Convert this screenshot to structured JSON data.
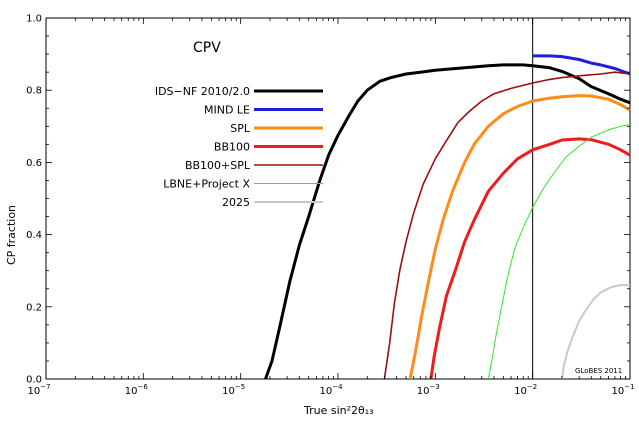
{
  "chart_data": {
    "type": "line",
    "inset_title": "CPV",
    "xlabel": "True sin²2θ₁₃",
    "ylabel": "CP fraction",
    "x_scale": "log",
    "xlim": [
      1e-07,
      0.1
    ],
    "ylim": [
      0,
      1.0
    ],
    "x_ticks": [
      {
        "v": 1e-07,
        "base": "10",
        "exp": "−7"
      },
      {
        "v": 1e-06,
        "base": "10",
        "exp": "−6"
      },
      {
        "v": 1e-05,
        "base": "10",
        "exp": "−5"
      },
      {
        "v": 0.0001,
        "base": "10",
        "exp": "−4"
      },
      {
        "v": 0.001,
        "base": "10",
        "exp": "−3"
      },
      {
        "v": 0.01,
        "base": "10",
        "exp": "−2"
      },
      {
        "v": 0.1,
        "base": "10",
        "exp": "−1"
      }
    ],
    "y_ticks": [
      {
        "v": 0.0,
        "label": "0.0"
      },
      {
        "v": 0.2,
        "label": "0.2"
      },
      {
        "v": 0.4,
        "label": "0.4"
      },
      {
        "v": 0.6,
        "label": "0.6"
      },
      {
        "v": 0.8,
        "label": "0.8"
      },
      {
        "v": 1.0,
        "label": "1.0"
      }
    ],
    "reference_line_x": 0.01,
    "watermark": "GLoBES 2011",
    "grid": false,
    "legend_position": "upper-left",
    "series": [
      {
        "name": "IDS−NF 2010/2.0",
        "color": "#000000",
        "width": 3,
        "points": [
          [
            1.8e-05,
            0
          ],
          [
            2.1e-05,
            0.05
          ],
          [
            2.5e-05,
            0.14
          ],
          [
            3.2e-05,
            0.27
          ],
          [
            4e-05,
            0.37
          ],
          [
            5e-05,
            0.45
          ],
          [
            6.5e-05,
            0.55
          ],
          [
            8e-05,
            0.62
          ],
          [
            0.0001,
            0.675
          ],
          [
            0.00013,
            0.73
          ],
          [
            0.00016,
            0.77
          ],
          [
            0.0002,
            0.8
          ],
          [
            0.00027,
            0.825
          ],
          [
            0.00035,
            0.835
          ],
          [
            0.0005,
            0.845
          ],
          [
            0.0007,
            0.85
          ],
          [
            0.001,
            0.855
          ],
          [
            0.002,
            0.862
          ],
          [
            0.0035,
            0.868
          ],
          [
            0.005,
            0.87
          ],
          [
            0.008,
            0.87
          ],
          [
            0.01,
            0.868
          ],
          [
            0.015,
            0.862
          ],
          [
            0.02,
            0.852
          ],
          [
            0.03,
            0.832
          ],
          [
            0.04,
            0.81
          ],
          [
            0.06,
            0.79
          ],
          [
            0.08,
            0.775
          ],
          [
            0.1,
            0.765
          ]
        ]
      },
      {
        "name": "MIND LE",
        "color": "#1f1fd8",
        "width": 3,
        "points": [
          [
            0.01,
            0.895
          ],
          [
            0.015,
            0.895
          ],
          [
            0.02,
            0.893
          ],
          [
            0.03,
            0.885
          ],
          [
            0.04,
            0.875
          ],
          [
            0.05,
            0.87
          ],
          [
            0.07,
            0.86
          ],
          [
            0.1,
            0.845
          ]
        ]
      },
      {
        "name": "SPL",
        "color": "#ff8c1a",
        "width": 3,
        "points": [
          [
            0.00055,
            0
          ],
          [
            0.00062,
            0.07
          ],
          [
            0.00072,
            0.17
          ],
          [
            0.00085,
            0.27
          ],
          [
            0.001,
            0.36
          ],
          [
            0.0012,
            0.44
          ],
          [
            0.0015,
            0.52
          ],
          [
            0.002,
            0.6
          ],
          [
            0.0025,
            0.65
          ],
          [
            0.0035,
            0.7
          ],
          [
            0.005,
            0.735
          ],
          [
            0.007,
            0.755
          ],
          [
            0.01,
            0.77
          ],
          [
            0.015,
            0.778
          ],
          [
            0.02,
            0.782
          ],
          [
            0.03,
            0.785
          ],
          [
            0.04,
            0.784
          ],
          [
            0.06,
            0.775
          ],
          [
            0.08,
            0.76
          ],
          [
            0.1,
            0.745
          ]
        ]
      },
      {
        "name": "BB100",
        "color": "#ee1c1c",
        "width": 3,
        "points": [
          [
            0.0009,
            0
          ],
          [
            0.00097,
            0.06
          ],
          [
            0.0011,
            0.14
          ],
          [
            0.0013,
            0.23
          ],
          [
            0.0016,
            0.3
          ],
          [
            0.002,
            0.38
          ],
          [
            0.0025,
            0.44
          ],
          [
            0.0035,
            0.52
          ],
          [
            0.005,
            0.57
          ],
          [
            0.007,
            0.61
          ],
          [
            0.01,
            0.635
          ],
          [
            0.015,
            0.65
          ],
          [
            0.02,
            0.662
          ],
          [
            0.03,
            0.665
          ],
          [
            0.04,
            0.663
          ],
          [
            0.06,
            0.65
          ],
          [
            0.08,
            0.635
          ],
          [
            0.1,
            0.62
          ]
        ]
      },
      {
        "name": "BB100+SPL",
        "color": "#9b1010",
        "width": 1.6,
        "points": [
          [
            0.0003,
            0
          ],
          [
            0.00034,
            0.1
          ],
          [
            0.00038,
            0.21
          ],
          [
            0.00043,
            0.3
          ],
          [
            0.0005,
            0.38
          ],
          [
            0.0006,
            0.46
          ],
          [
            0.00075,
            0.54
          ],
          [
            0.001,
            0.61
          ],
          [
            0.0013,
            0.66
          ],
          [
            0.0017,
            0.71
          ],
          [
            0.0022,
            0.74
          ],
          [
            0.003,
            0.77
          ],
          [
            0.004,
            0.79
          ],
          [
            0.006,
            0.805
          ],
          [
            0.01,
            0.82
          ],
          [
            0.015,
            0.83
          ],
          [
            0.02,
            0.835
          ],
          [
            0.03,
            0.84
          ],
          [
            0.05,
            0.845
          ],
          [
            0.07,
            0.85
          ],
          [
            0.1,
            0.845
          ]
        ]
      },
      {
        "name": "LBNE+Project X",
        "color": "#33e633",
        "width": 1,
        "points": [
          [
            0.0035,
            0
          ],
          [
            0.0038,
            0.05
          ],
          [
            0.0042,
            0.12
          ],
          [
            0.0048,
            0.2
          ],
          [
            0.0055,
            0.28
          ],
          [
            0.0065,
            0.36
          ],
          [
            0.008,
            0.42
          ],
          [
            0.01,
            0.475
          ],
          [
            0.013,
            0.53
          ],
          [
            0.017,
            0.575
          ],
          [
            0.022,
            0.615
          ],
          [
            0.03,
            0.645
          ],
          [
            0.04,
            0.67
          ],
          [
            0.06,
            0.69
          ],
          [
            0.08,
            0.7
          ],
          [
            0.1,
            0.705
          ]
        ]
      },
      {
        "name": "2025",
        "color": "#c8c8c8",
        "width": 2,
        "points": [
          [
            0.02,
            0
          ],
          [
            0.021,
            0.04
          ],
          [
            0.023,
            0.08
          ],
          [
            0.026,
            0.12
          ],
          [
            0.03,
            0.16
          ],
          [
            0.035,
            0.19
          ],
          [
            0.042,
            0.22
          ],
          [
            0.05,
            0.24
          ],
          [
            0.065,
            0.255
          ],
          [
            0.08,
            0.26
          ],
          [
            0.1,
            0.26
          ]
        ]
      }
    ]
  }
}
